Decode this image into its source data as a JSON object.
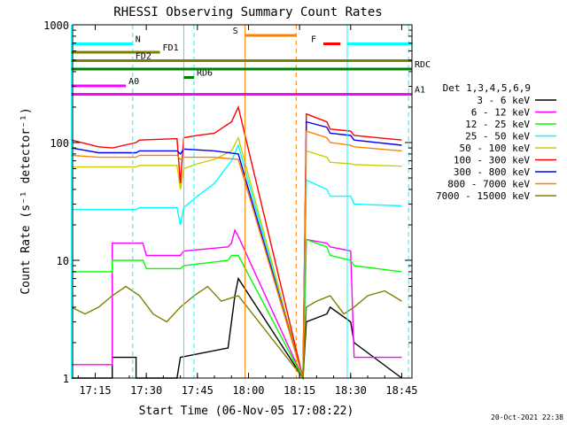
{
  "chart_data": {
    "type": "line",
    "title": "RHESSI Observing Summary Count Rates",
    "xlabel": "Start Time (06-Nov-05 17:08:22)",
    "ylabel": "Count Rate (s⁻¹ detector⁻¹)",
    "x_range": [
      "17:08",
      "18:48"
    ],
    "ylim": [
      1,
      1000
    ],
    "yscale": "log",
    "x_ticks": [
      "17:15",
      "17:30",
      "17:45",
      "18:00",
      "18:15",
      "18:30",
      "18:45"
    ],
    "y_ticks": [
      "1",
      "10",
      "100",
      "1000"
    ],
    "legend_title": "Det 1,3,4,5,6,9",
    "legend_position": "right",
    "series": [
      {
        "name": "3 - 6 keV",
        "color": "#000000",
        "x": [
          "17:08",
          "17:20",
          "17:20",
          "17:27",
          "17:27",
          "17:39",
          "17:40",
          "17:54",
          "17:55",
          "17:56",
          "17:57",
          "18:16",
          "18:17",
          "18:23",
          "18:24",
          "18:30",
          "18:31",
          "18:45"
        ],
        "y": [
          1,
          1,
          1.5,
          1.5,
          1,
          1,
          1.5,
          1.8,
          3,
          5,
          7,
          1,
          3,
          3.5,
          4,
          3,
          2,
          1
        ]
      },
      {
        "name": "6 - 12 keV",
        "color": "#ff00ff",
        "x": [
          "17:08",
          "17:20",
          "17:20",
          "17:29",
          "17:30",
          "17:40",
          "17:41",
          "17:54",
          "17:55",
          "17:56",
          "17:57",
          "18:16",
          "18:17",
          "18:23",
          "18:24",
          "18:30",
          "18:31",
          "18:45"
        ],
        "y": [
          1.3,
          1.3,
          14,
          14,
          11,
          11,
          12,
          13,
          14,
          18,
          16,
          1,
          15,
          14,
          13,
          12,
          1.5,
          1.5
        ]
      },
      {
        "name": "12 - 25 keV",
        "color": "#00ff00",
        "x": [
          "17:08",
          "17:20",
          "17:20",
          "17:29",
          "17:30",
          "17:40",
          "17:41",
          "17:54",
          "17:55",
          "17:57",
          "18:16",
          "18:17",
          "18:23",
          "18:24",
          "18:30",
          "18:31",
          "18:45"
        ],
        "y": [
          8,
          8,
          10,
          10,
          8.5,
          8.5,
          9,
          10,
          11,
          11,
          1,
          15,
          13,
          11,
          10,
          9,
          8
        ]
      },
      {
        "name": "25 - 50 keV",
        "color": "#00ffff",
        "x": [
          "17:08",
          "17:27",
          "17:28",
          "17:39",
          "17:40",
          "17:41",
          "17:45",
          "17:50",
          "17:55",
          "17:57",
          "18:16",
          "18:17",
          "18:23",
          "18:24",
          "18:30",
          "18:31",
          "18:45"
        ],
        "y": [
          27,
          27,
          28,
          28,
          20,
          28,
          35,
          45,
          70,
          95,
          1,
          48,
          40,
          35,
          35,
          30,
          29
        ]
      },
      {
        "name": "50 - 100 keV",
        "color": "#cccc00",
        "x": [
          "17:08",
          "17:27",
          "17:28",
          "17:39",
          "17:40",
          "17:41",
          "17:45",
          "17:50",
          "17:55",
          "17:57",
          "18:16",
          "18:17",
          "18:23",
          "18:24",
          "18:30",
          "18:31",
          "18:45"
        ],
        "y": [
          62,
          62,
          64,
          64,
          40,
          60,
          66,
          72,
          85,
          110,
          1,
          85,
          75,
          68,
          66,
          65,
          63
        ]
      },
      {
        "name": "100 - 300 keV",
        "color": "#ff0000",
        "x": [
          "17:08",
          "17:16",
          "17:20",
          "17:27",
          "17:28",
          "17:39",
          "17:40",
          "17:41",
          "17:45",
          "17:50",
          "17:55",
          "17:57",
          "18:16",
          "18:17",
          "18:23",
          "18:24",
          "18:30",
          "18:31",
          "18:45"
        ],
        "y": [
          105,
          92,
          90,
          100,
          105,
          108,
          45,
          110,
          115,
          120,
          150,
          200,
          1,
          175,
          150,
          130,
          125,
          115,
          105
        ]
      },
      {
        "name": "300 - 800 keV",
        "color": "#0000ff",
        "x": [
          "17:08",
          "17:16",
          "17:27",
          "17:28",
          "17:39",
          "17:40",
          "17:41",
          "17:50",
          "17:57",
          "18:16",
          "18:17",
          "18:23",
          "18:24",
          "18:30",
          "18:31",
          "18:45"
        ],
        "y": [
          90,
          82,
          82,
          85,
          85,
          80,
          88,
          85,
          80,
          1,
          150,
          135,
          120,
          115,
          105,
          95
        ]
      },
      {
        "name": "800 - 7000 keV",
        "color": "#ff8000",
        "x": [
          "17:08",
          "17:16",
          "17:27",
          "17:28",
          "17:39",
          "17:40",
          "17:41",
          "17:50",
          "17:57",
          "18:16",
          "18:17",
          "18:23",
          "18:24",
          "18:30",
          "18:31",
          "18:45"
        ],
        "y": [
          78,
          75,
          75,
          78,
          78,
          72,
          75,
          75,
          72,
          1,
          125,
          110,
          100,
          95,
          92,
          85
        ]
      },
      {
        "name": "7000 - 15000 keV",
        "color": "#808000",
        "x": [
          "17:08",
          "17:12",
          "17:16",
          "17:20",
          "17:24",
          "17:28",
          "17:32",
          "17:36",
          "17:40",
          "17:44",
          "17:48",
          "17:52",
          "17:57",
          "18:16",
          "18:17",
          "18:20",
          "18:24",
          "18:28",
          "18:31",
          "18:35",
          "18:40",
          "18:45"
        ],
        "y": [
          4,
          3.5,
          4,
          5,
          6,
          5,
          3.5,
          3,
          4,
          5,
          6,
          4.5,
          5,
          1,
          4,
          4.5,
          5,
          3.5,
          4,
          5,
          5.5,
          4.5
        ]
      }
    ],
    "annotations": [
      {
        "label": "N",
        "color": "#00ffff",
        "row": 1,
        "segments": [
          [
            "17:08",
            "17:26"
          ],
          [
            "18:29",
            "18:48"
          ]
        ]
      },
      {
        "label": "FD1",
        "color": "#808000",
        "row": 2,
        "segments": [
          [
            "17:08",
            "17:34"
          ]
        ]
      },
      {
        "label": "FD2",
        "color": "#808000",
        "row": 3,
        "segments": [
          [
            "17:08",
            "17:26"
          ],
          [
            "17:26",
            "18:48"
          ]
        ]
      },
      {
        "label": "RD6",
        "color": "#008000",
        "row": 5,
        "segments": [
          [
            "17:41",
            "17:44"
          ]
        ]
      },
      {
        "label": "RDC",
        "color": "#008000",
        "row": 4,
        "segments": [
          [
            "17:08",
            "18:48"
          ]
        ]
      },
      {
        "label": "A0",
        "color": "#ff00ff",
        "row": 6,
        "segments": [
          [
            "17:08",
            "17:24"
          ]
        ]
      },
      {
        "label": "A1",
        "color": "#ff00ff",
        "row": 7,
        "segments": [
          [
            "17:08",
            "18:48"
          ]
        ]
      },
      {
        "label": "S",
        "color": "#ff8000",
        "row": 0,
        "segments": [
          [
            "17:59",
            "18:14"
          ]
        ]
      },
      {
        "label": "F",
        "color": "#ff0000",
        "row": 1,
        "segments": [
          [
            "18:22",
            "18:27"
          ]
        ]
      }
    ],
    "vlines": [
      {
        "at": "17:08",
        "color": "#00ffff",
        "style": "solid"
      },
      {
        "at": "17:26",
        "color": "#00ffff",
        "style": "dashed"
      },
      {
        "at": "17:41",
        "color": "#00ffff",
        "style": "solid"
      },
      {
        "at": "17:44",
        "color": "#00ffff",
        "style": "dashed"
      },
      {
        "at": "17:59",
        "color": "#ff8000",
        "style": "solid"
      },
      {
        "at": "18:14",
        "color": "#ff8000",
        "style": "dashed"
      },
      {
        "at": "18:29",
        "color": "#00ffff",
        "style": "solid"
      },
      {
        "at": "18:47",
        "color": "#00ffff",
        "style": "dashed"
      }
    ]
  },
  "footer": {
    "timestamp": "20-Oct-2021 22:38"
  }
}
